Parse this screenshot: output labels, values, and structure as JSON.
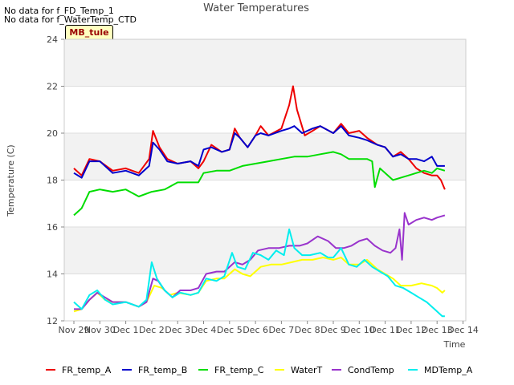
{
  "chart_data": {
    "type": "line",
    "title": "Water Temperatures",
    "xlabel": "Time",
    "ylabel": "Temperature (C)",
    "ylim": [
      12,
      24
    ],
    "yticks": [
      12,
      14,
      16,
      18,
      20,
      22,
      24
    ],
    "xlim": [
      0,
      15.5
    ],
    "xticks": [
      {
        "x": 0,
        "label": "Nov 29"
      },
      {
        "x": 1,
        "label": "Nov 30"
      },
      {
        "x": 2,
        "label": "Dec 1"
      },
      {
        "x": 3,
        "label": "Dec 2"
      },
      {
        "x": 4,
        "label": "Dec 3"
      },
      {
        "x": 5,
        "label": "Dec 4"
      },
      {
        "x": 6,
        "label": "Dec 5"
      },
      {
        "x": 7,
        "label": "Dec 6"
      },
      {
        "x": 8,
        "label": "Dec 7"
      },
      {
        "x": 9,
        "label": "Dec 8"
      },
      {
        "x": 10,
        "label": "Dec 9"
      },
      {
        "x": 11,
        "label": "Dec 10"
      },
      {
        "x": 12,
        "label": "Dec 11"
      },
      {
        "x": 13,
        "label": "Dec 12"
      },
      {
        "x": 14,
        "label": "Dec 13"
      },
      {
        "x": 15,
        "label": "Dec 14"
      }
    ],
    "grid_bands": true,
    "legend_position": "bottom",
    "notes": [
      "No data for f_FD_Temp_1",
      "No data for f_WaterTemp_CTD"
    ],
    "station_label": "MB_tule",
    "series": [
      {
        "name": "FR_temp_A",
        "color": "#ee0000",
        "points": [
          [
            0,
            18.5
          ],
          [
            0.3,
            18.2
          ],
          [
            0.6,
            18.9
          ],
          [
            1.0,
            18.8
          ],
          [
            1.5,
            18.4
          ],
          [
            2.0,
            18.5
          ],
          [
            2.5,
            18.3
          ],
          [
            2.9,
            18.9
          ],
          [
            3.05,
            20.1
          ],
          [
            3.3,
            19.4
          ],
          [
            3.6,
            18.9
          ],
          [
            4.0,
            18.7
          ],
          [
            4.5,
            18.8
          ],
          [
            4.8,
            18.5
          ],
          [
            5.0,
            18.8
          ],
          [
            5.3,
            19.5
          ],
          [
            5.7,
            19.2
          ],
          [
            6.0,
            19.3
          ],
          [
            6.2,
            20.2
          ],
          [
            6.4,
            19.8
          ],
          [
            6.7,
            19.4
          ],
          [
            7.0,
            19.9
          ],
          [
            7.2,
            20.3
          ],
          [
            7.5,
            19.9
          ],
          [
            8.0,
            20.2
          ],
          [
            8.3,
            21.2
          ],
          [
            8.45,
            22.0
          ],
          [
            8.6,
            21.0
          ],
          [
            8.9,
            19.9
          ],
          [
            9.2,
            20.1
          ],
          [
            9.5,
            20.3
          ],
          [
            10.0,
            20.0
          ],
          [
            10.3,
            20.4
          ],
          [
            10.6,
            20.0
          ],
          [
            11.0,
            20.1
          ],
          [
            11.3,
            19.8
          ],
          [
            11.7,
            19.5
          ],
          [
            12.0,
            19.4
          ],
          [
            12.3,
            19.0
          ],
          [
            12.6,
            19.2
          ],
          [
            12.9,
            18.9
          ],
          [
            13.2,
            18.5
          ],
          [
            13.5,
            18.3
          ],
          [
            13.8,
            18.2
          ],
          [
            14.0,
            18.2
          ],
          [
            14.15,
            18.0
          ],
          [
            14.3,
            17.6
          ]
        ]
      },
      {
        "name": "FR_temp_B",
        "color": "#0000cc",
        "points": [
          [
            0,
            18.3
          ],
          [
            0.3,
            18.1
          ],
          [
            0.6,
            18.8
          ],
          [
            1.0,
            18.8
          ],
          [
            1.5,
            18.3
          ],
          [
            2.0,
            18.4
          ],
          [
            2.5,
            18.2
          ],
          [
            2.9,
            18.6
          ],
          [
            3.05,
            19.6
          ],
          [
            3.3,
            19.3
          ],
          [
            3.6,
            18.8
          ],
          [
            4.0,
            18.7
          ],
          [
            4.5,
            18.8
          ],
          [
            4.8,
            18.6
          ],
          [
            5.0,
            19.3
          ],
          [
            5.3,
            19.4
          ],
          [
            5.7,
            19.2
          ],
          [
            6.0,
            19.3
          ],
          [
            6.2,
            20.0
          ],
          [
            6.4,
            19.8
          ],
          [
            6.7,
            19.4
          ],
          [
            7.0,
            19.9
          ],
          [
            7.2,
            20.0
          ],
          [
            7.5,
            19.9
          ],
          [
            8.0,
            20.1
          ],
          [
            8.3,
            20.2
          ],
          [
            8.5,
            20.3
          ],
          [
            8.8,
            20.0
          ],
          [
            9.2,
            20.2
          ],
          [
            9.5,
            20.3
          ],
          [
            10.0,
            20.0
          ],
          [
            10.3,
            20.3
          ],
          [
            10.6,
            19.9
          ],
          [
            11.0,
            19.8
          ],
          [
            11.3,
            19.7
          ],
          [
            11.7,
            19.5
          ],
          [
            12.0,
            19.4
          ],
          [
            12.3,
            19.0
          ],
          [
            12.6,
            19.1
          ],
          [
            12.9,
            18.9
          ],
          [
            13.2,
            18.9
          ],
          [
            13.5,
            18.8
          ],
          [
            13.8,
            19.0
          ],
          [
            14.0,
            18.6
          ],
          [
            14.15,
            18.6
          ],
          [
            14.3,
            18.6
          ]
        ]
      },
      {
        "name": "FR_temp_C",
        "color": "#00dd00",
        "points": [
          [
            0,
            16.5
          ],
          [
            0.3,
            16.8
          ],
          [
            0.6,
            17.5
          ],
          [
            1.0,
            17.6
          ],
          [
            1.5,
            17.5
          ],
          [
            2.0,
            17.6
          ],
          [
            2.5,
            17.3
          ],
          [
            3.0,
            17.5
          ],
          [
            3.5,
            17.6
          ],
          [
            4.0,
            17.9
          ],
          [
            4.5,
            17.9
          ],
          [
            4.8,
            17.9
          ],
          [
            5.0,
            18.3
          ],
          [
            5.5,
            18.4
          ],
          [
            6.0,
            18.4
          ],
          [
            6.5,
            18.6
          ],
          [
            7.0,
            18.7
          ],
          [
            7.5,
            18.8
          ],
          [
            8.0,
            18.9
          ],
          [
            8.5,
            19.0
          ],
          [
            9.0,
            19.0
          ],
          [
            9.5,
            19.1
          ],
          [
            10.0,
            19.2
          ],
          [
            10.3,
            19.1
          ],
          [
            10.6,
            18.9
          ],
          [
            11.0,
            18.9
          ],
          [
            11.3,
            18.9
          ],
          [
            11.5,
            18.8
          ],
          [
            11.6,
            17.7
          ],
          [
            11.8,
            18.5
          ],
          [
            12.0,
            18.3
          ],
          [
            12.3,
            18.0
          ],
          [
            12.6,
            18.1
          ],
          [
            12.9,
            18.2
          ],
          [
            13.2,
            18.3
          ],
          [
            13.5,
            18.4
          ],
          [
            13.8,
            18.3
          ],
          [
            14.0,
            18.5
          ],
          [
            14.3,
            18.4
          ]
        ]
      },
      {
        "name": "WaterT",
        "color": "#ffff00",
        "points": [
          [
            0,
            12.4
          ],
          [
            0.3,
            12.5
          ],
          [
            0.6,
            12.9
          ],
          [
            0.9,
            13.2
          ],
          [
            1.2,
            12.9
          ],
          [
            1.5,
            12.8
          ],
          [
            2.0,
            12.8
          ],
          [
            2.5,
            12.6
          ],
          [
            2.8,
            12.8
          ],
          [
            3.1,
            13.5
          ],
          [
            3.4,
            13.4
          ],
          [
            3.7,
            13.1
          ],
          [
            4.0,
            13.2
          ],
          [
            4.5,
            13.1
          ],
          [
            4.8,
            13.2
          ],
          [
            5.1,
            13.7
          ],
          [
            5.5,
            13.8
          ],
          [
            5.8,
            13.8
          ],
          [
            6.2,
            14.2
          ],
          [
            6.5,
            14.0
          ],
          [
            6.8,
            13.9
          ],
          [
            7.2,
            14.3
          ],
          [
            7.6,
            14.4
          ],
          [
            8.0,
            14.4
          ],
          [
            8.4,
            14.5
          ],
          [
            8.8,
            14.6
          ],
          [
            9.2,
            14.6
          ],
          [
            9.6,
            14.7
          ],
          [
            10.0,
            14.6
          ],
          [
            10.3,
            14.7
          ],
          [
            10.6,
            14.4
          ],
          [
            11.0,
            14.4
          ],
          [
            11.3,
            14.6
          ],
          [
            11.7,
            14.2
          ],
          [
            12.0,
            14.0
          ],
          [
            12.3,
            13.8
          ],
          [
            12.6,
            13.5
          ],
          [
            13.0,
            13.5
          ],
          [
            13.4,
            13.6
          ],
          [
            13.8,
            13.5
          ],
          [
            14.0,
            13.4
          ],
          [
            14.2,
            13.2
          ],
          [
            14.3,
            13.3
          ]
        ]
      },
      {
        "name": "CondTemp",
        "color": "#9933cc",
        "points": [
          [
            0,
            12.5
          ],
          [
            0.3,
            12.5
          ],
          [
            0.6,
            12.9
          ],
          [
            0.9,
            13.2
          ],
          [
            1.2,
            13.0
          ],
          [
            1.5,
            12.8
          ],
          [
            2.0,
            12.8
          ],
          [
            2.5,
            12.6
          ],
          [
            2.8,
            12.8
          ],
          [
            3.05,
            13.8
          ],
          [
            3.25,
            13.7
          ],
          [
            3.5,
            13.3
          ],
          [
            3.8,
            13.0
          ],
          [
            4.1,
            13.3
          ],
          [
            4.5,
            13.3
          ],
          [
            4.8,
            13.4
          ],
          [
            5.1,
            14.0
          ],
          [
            5.5,
            14.1
          ],
          [
            5.8,
            14.1
          ],
          [
            6.2,
            14.5
          ],
          [
            6.5,
            14.4
          ],
          [
            6.8,
            14.6
          ],
          [
            7.1,
            15.0
          ],
          [
            7.5,
            15.1
          ],
          [
            7.9,
            15.1
          ],
          [
            8.3,
            15.2
          ],
          [
            8.7,
            15.2
          ],
          [
            9.0,
            15.3
          ],
          [
            9.4,
            15.6
          ],
          [
            9.8,
            15.4
          ],
          [
            10.1,
            15.1
          ],
          [
            10.4,
            15.1
          ],
          [
            10.7,
            15.2
          ],
          [
            11.0,
            15.4
          ],
          [
            11.3,
            15.5
          ],
          [
            11.6,
            15.2
          ],
          [
            11.9,
            15.0
          ],
          [
            12.2,
            14.9
          ],
          [
            12.4,
            15.1
          ],
          [
            12.55,
            15.9
          ],
          [
            12.65,
            14.6
          ],
          [
            12.75,
            16.6
          ],
          [
            12.9,
            16.1
          ],
          [
            13.2,
            16.3
          ],
          [
            13.5,
            16.4
          ],
          [
            13.8,
            16.3
          ],
          [
            14.0,
            16.4
          ],
          [
            14.3,
            16.5
          ]
        ]
      },
      {
        "name": "MDTemp_A",
        "color": "#00eeee",
        "points": [
          [
            0,
            12.8
          ],
          [
            0.3,
            12.5
          ],
          [
            0.6,
            13.1
          ],
          [
            0.9,
            13.3
          ],
          [
            1.2,
            12.9
          ],
          [
            1.5,
            12.7
          ],
          [
            2.0,
            12.8
          ],
          [
            2.5,
            12.6
          ],
          [
            2.8,
            12.9
          ],
          [
            3.0,
            14.5
          ],
          [
            3.2,
            13.8
          ],
          [
            3.5,
            13.3
          ],
          [
            3.8,
            13.0
          ],
          [
            4.1,
            13.2
          ],
          [
            4.5,
            13.1
          ],
          [
            4.8,
            13.2
          ],
          [
            5.1,
            13.8
          ],
          [
            5.5,
            13.7
          ],
          [
            5.8,
            13.9
          ],
          [
            6.1,
            14.9
          ],
          [
            6.3,
            14.3
          ],
          [
            6.6,
            14.2
          ],
          [
            6.9,
            14.9
          ],
          [
            7.2,
            14.8
          ],
          [
            7.5,
            14.6
          ],
          [
            7.8,
            15.0
          ],
          [
            8.1,
            14.8
          ],
          [
            8.3,
            15.9
          ],
          [
            8.5,
            15.1
          ],
          [
            8.8,
            14.8
          ],
          [
            9.1,
            14.8
          ],
          [
            9.5,
            14.9
          ],
          [
            9.8,
            14.7
          ],
          [
            10.0,
            14.7
          ],
          [
            10.3,
            15.1
          ],
          [
            10.6,
            14.4
          ],
          [
            10.9,
            14.3
          ],
          [
            11.2,
            14.6
          ],
          [
            11.5,
            14.3
          ],
          [
            11.8,
            14.1
          ],
          [
            12.1,
            13.9
          ],
          [
            12.4,
            13.5
          ],
          [
            12.7,
            13.4
          ],
          [
            13.0,
            13.2
          ],
          [
            13.3,
            13.0
          ],
          [
            13.6,
            12.8
          ],
          [
            13.9,
            12.5
          ],
          [
            14.1,
            12.3
          ],
          [
            14.2,
            12.2
          ],
          [
            14.3,
            12.2
          ]
        ]
      }
    ]
  }
}
